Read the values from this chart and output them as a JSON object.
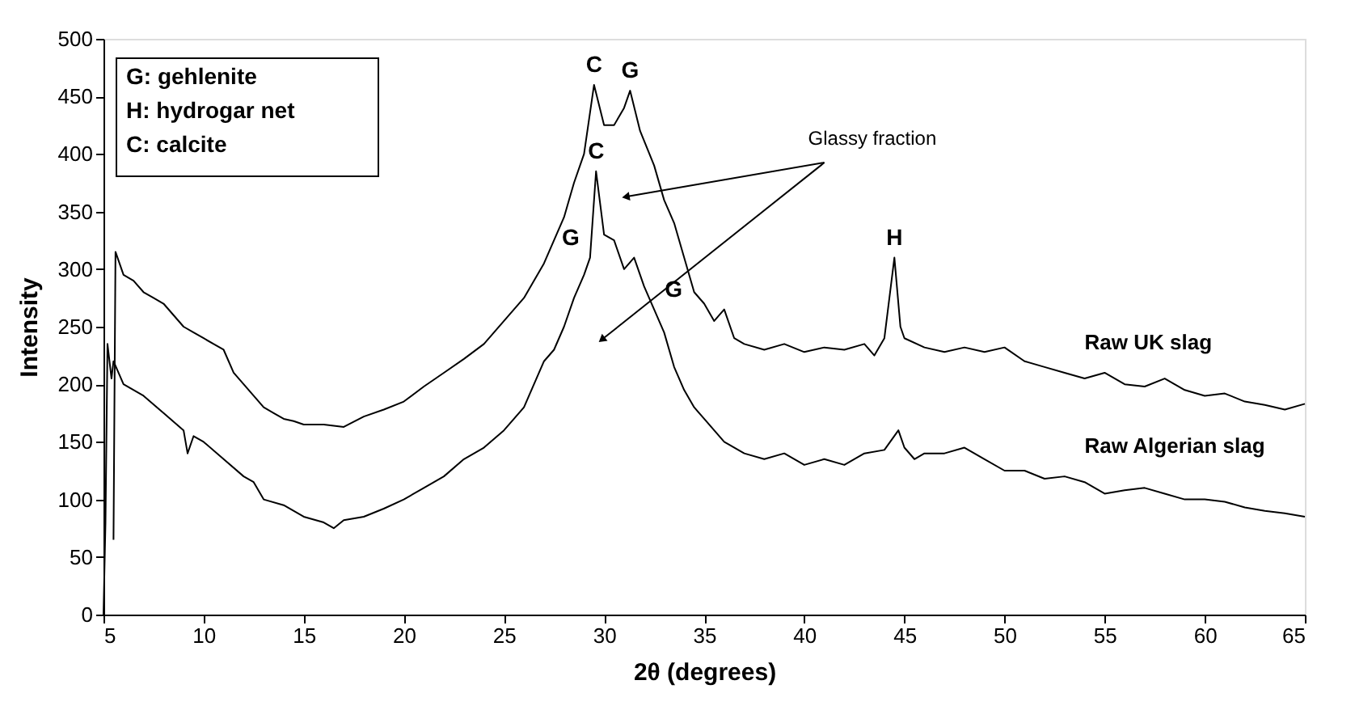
{
  "chart_data": {
    "type": "line",
    "xlabel": "2θ (degrees)",
    "ylabel": "Intensity",
    "xlim": [
      5,
      65
    ],
    "ylim": [
      0,
      500
    ],
    "xticks": [
      5,
      10,
      15,
      20,
      25,
      30,
      35,
      40,
      45,
      50,
      55,
      60,
      65
    ],
    "yticks": [
      0,
      50,
      100,
      150,
      200,
      250,
      300,
      350,
      400,
      450,
      500
    ],
    "grid": false,
    "legend": false,
    "marker": "none",
    "line_style": "solid",
    "series": [
      {
        "name": "Raw UK slag",
        "color": "#000000",
        "x": [
          5.5,
          5.6,
          6,
          6.5,
          7,
          7.5,
          8,
          8.5,
          9,
          9.5,
          10,
          10.5,
          11,
          11.5,
          12,
          12.5,
          13,
          13.5,
          14,
          14.5,
          15,
          16,
          17,
          18,
          19,
          20,
          21,
          22,
          23,
          24,
          25,
          26,
          27,
          28,
          28.5,
          29,
          29.5,
          30,
          30.5,
          31,
          31.3,
          31.8,
          32.5,
          33,
          33.5,
          34,
          34.5,
          35,
          35.5,
          36,
          36.5,
          37,
          38,
          39,
          40,
          41,
          42,
          43,
          43.5,
          44,
          44.5,
          44.8,
          45,
          46,
          47,
          48,
          49,
          50,
          51,
          52,
          53,
          54,
          55,
          56,
          57,
          58,
          59,
          60,
          61,
          62,
          63,
          64,
          65
        ],
        "values": [
          65,
          315,
          295,
          290,
          280,
          275,
          270,
          260,
          250,
          245,
          240,
          235,
          230,
          210,
          200,
          190,
          180,
          175,
          170,
          168,
          165,
          165,
          163,
          172,
          178,
          185,
          198,
          210,
          222,
          235,
          255,
          275,
          305,
          345,
          375,
          400,
          460,
          425,
          425,
          440,
          455,
          420,
          390,
          360,
          340,
          310,
          280,
          270,
          255,
          265,
          240,
          235,
          230,
          235,
          228,
          232,
          230,
          235,
          225,
          240,
          310,
          250,
          240,
          232,
          228,
          232,
          228,
          232,
          220,
          215,
          210,
          205,
          210,
          200,
          198,
          205,
          195,
          190,
          192,
          185,
          182,
          178,
          183
        ]
      },
      {
        "name": "Raw Algerian slag",
        "color": "#000000",
        "x": [
          5,
          5.1,
          5.2,
          5.4,
          5.5,
          6,
          7,
          8,
          9,
          9.2,
          9.5,
          10,
          11,
          12,
          12.5,
          13,
          14,
          15,
          16,
          16.5,
          17,
          18,
          19,
          20,
          21,
          22,
          23,
          24,
          25,
          26,
          27,
          27.5,
          28,
          28.5,
          29,
          29.3,
          29.6,
          30,
          30.5,
          31,
          31.5,
          32,
          32.5,
          33,
          33.5,
          34,
          34.5,
          35,
          36,
          37,
          38,
          39,
          40,
          41,
          42,
          43,
          44,
          44.7,
          45,
          45.5,
          46,
          47,
          48,
          49,
          50,
          51,
          52,
          53,
          54,
          55,
          56,
          57,
          58,
          59,
          60,
          61,
          62,
          63,
          64,
          65
        ],
        "values": [
          0,
          80,
          235,
          205,
          220,
          200,
          190,
          175,
          160,
          140,
          155,
          150,
          135,
          120,
          115,
          100,
          95,
          85,
          80,
          75,
          82,
          85,
          92,
          100,
          110,
          120,
          135,
          145,
          160,
          180,
          220,
          230,
          250,
          275,
          295,
          310,
          385,
          330,
          325,
          300,
          310,
          285,
          265,
          245,
          215,
          195,
          180,
          170,
          150,
          140,
          135,
          140,
          130,
          135,
          130,
          140,
          143,
          160,
          145,
          135,
          140,
          140,
          145,
          135,
          125,
          125,
          118,
          120,
          115,
          105,
          108,
          110,
          105,
          100,
          100,
          98,
          93,
          90,
          88,
          85
        ]
      }
    ],
    "annotations": [
      "G: gehlenite",
      "H: hydrogar net",
      "C: calcite",
      {
        "text": "C",
        "x": 29.5,
        "y": 460
      },
      {
        "text": "G",
        "x": 31.3,
        "y": 455
      },
      {
        "text": "C",
        "x": 29.6,
        "y": 385
      },
      {
        "text": "G",
        "x": 29.3,
        "y": 310
      },
      {
        "text": "G",
        "x": 32.5,
        "y": 265
      },
      {
        "text": "H",
        "x": 44.5,
        "y": 310
      },
      "Glassy fraction"
    ]
  }
}
